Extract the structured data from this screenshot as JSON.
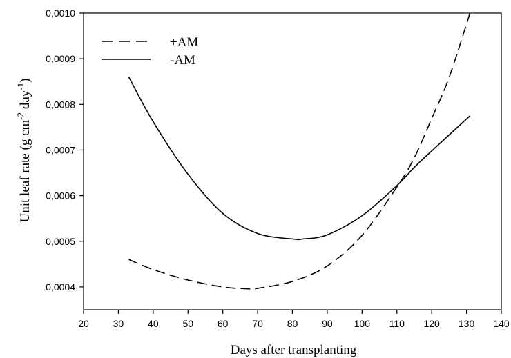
{
  "chart_data": {
    "type": "line",
    "title": "",
    "xlabel": "Days after transplanting",
    "ylabel": {
      "base": "Unit leaf rate (g cm",
      "sup1": "-2",
      "mid": " day",
      "sup2": "-1",
      "end": ")"
    },
    "xlim": [
      20,
      140
    ],
    "ylim": [
      0.00035,
      0.001
    ],
    "x_ticks": [
      20,
      30,
      40,
      50,
      60,
      70,
      80,
      90,
      100,
      110,
      120,
      130,
      140
    ],
    "x_tick_labels": [
      "20",
      "30",
      "40",
      "50",
      "60",
      "70",
      "80",
      "90",
      "100",
      "110",
      "120",
      "130",
      "140"
    ],
    "y_ticks": [
      0.0004,
      0.0005,
      0.0006,
      0.0007,
      0.0008,
      0.0009,
      0.001
    ],
    "y_tick_labels": [
      "0,0004",
      "0,0005",
      "0,0006",
      "0,0007",
      "0,0008",
      "0,0009",
      "0,0010"
    ],
    "grid": false,
    "legend_position": "top-left",
    "series": [
      {
        "name": "+AM",
        "style": "dashed",
        "color": "#000000",
        "x": [
          33,
          40,
          50,
          60,
          67,
          70,
          80,
          90,
          100,
          110,
          115,
          120,
          125,
          131
        ],
        "y": [
          0.00046,
          0.000438,
          0.000415,
          0.0004,
          0.000396,
          0.000397,
          0.000412,
          0.000446,
          0.000513,
          0.000619,
          0.000683,
          0.000769,
          0.000859,
          0.001
        ]
      },
      {
        "name": "-AM",
        "style": "solid",
        "color": "#000000",
        "x": [
          33,
          40,
          50,
          60,
          70,
          80,
          83,
          90,
          100,
          110,
          115,
          120,
          131
        ],
        "y": [
          0.00086,
          0.000762,
          0.000647,
          0.000561,
          0.000517,
          0.000505,
          0.000505,
          0.000514,
          0.000556,
          0.000622,
          0.000662,
          0.000698,
          0.000775
        ]
      }
    ]
  }
}
